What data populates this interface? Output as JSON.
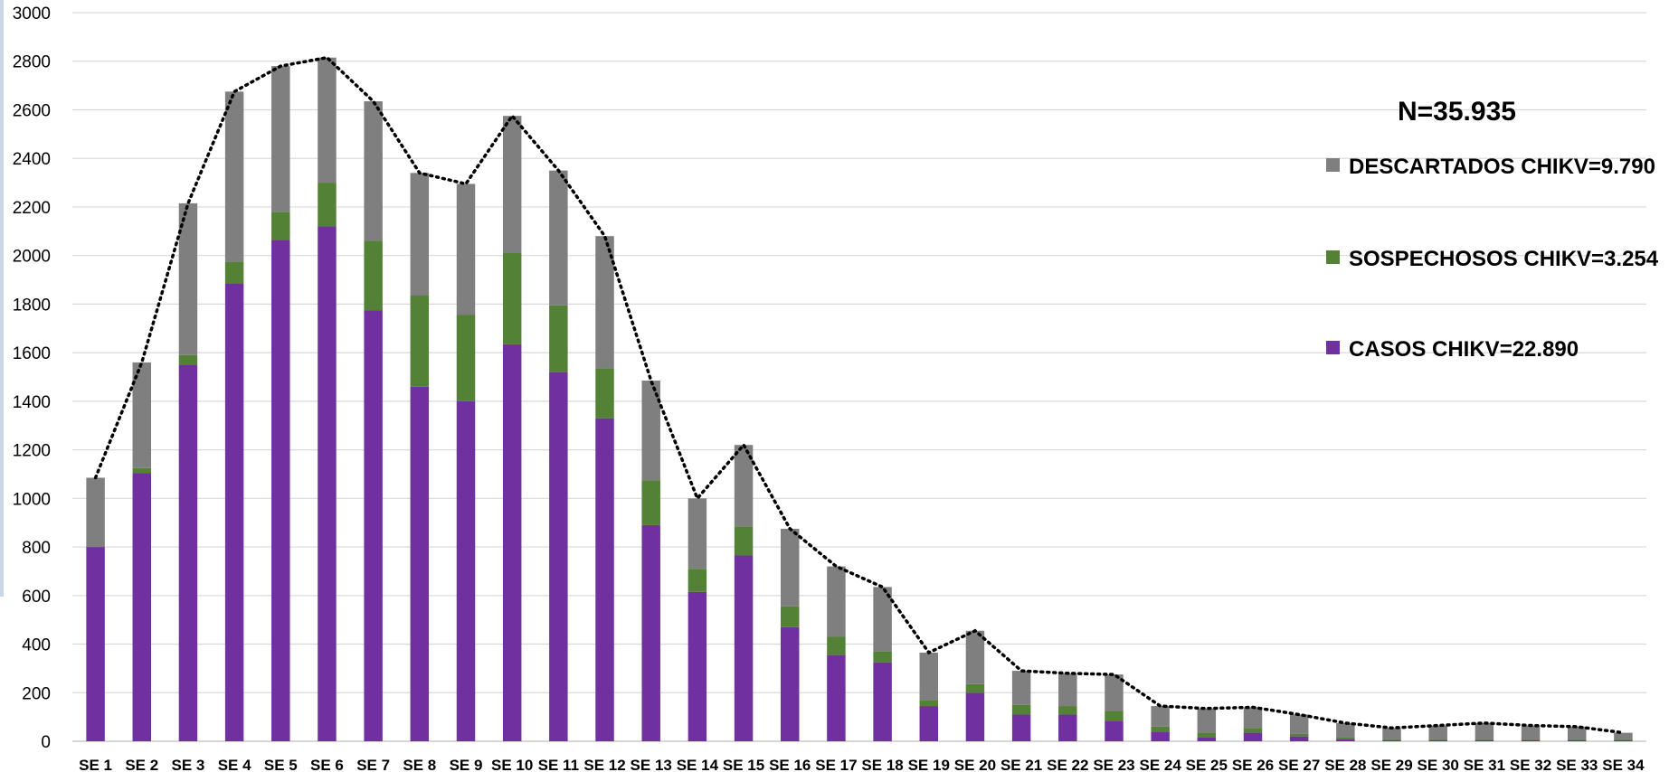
{
  "chart_data": {
    "type": "bar",
    "stacked": true,
    "title": "",
    "xlabel": "",
    "ylabel": "",
    "ylim": [
      0,
      3000
    ],
    "yticks": [
      0,
      200,
      400,
      600,
      800,
      1000,
      1200,
      1400,
      1600,
      1800,
      2000,
      2200,
      2400,
      2600,
      2800,
      3000
    ],
    "grid": true,
    "legend_position": "right",
    "total_label": "N=35.935",
    "categories": [
      "SE 1",
      "SE 2",
      "SE 3",
      "SE 4",
      "SE 5",
      "SE 6",
      "SE 7",
      "SE 8",
      "SE 9",
      "SE 10",
      "SE 11",
      "SE 12",
      "SE 13",
      "SE 14",
      "SE 15",
      "SE 16",
      "SE 17",
      "SE 18",
      "SE 19",
      "SE 20",
      "SE 21",
      "SE 22",
      "SE 23",
      "SE 24",
      "SE 25",
      "SE 26",
      "SE 27",
      "SE 28",
      "SE 29",
      "SE 30",
      "SE 31",
      "SE 32",
      "SE 33",
      "SE 34"
    ],
    "series": [
      {
        "name": "CASOS CHIKV=22.890",
        "color": "#7030a0",
        "values": [
          800,
          1105,
          1550,
          1885,
          2065,
          2120,
          1775,
          1460,
          1400,
          1635,
          1520,
          1330,
          890,
          615,
          765,
          470,
          355,
          325,
          145,
          200,
          110,
          110,
          85,
          40,
          15,
          35,
          20,
          10,
          5,
          5,
          5,
          5,
          5,
          5
        ]
      },
      {
        "name": "SOSPECHOSOS CHIKV=3.254",
        "color": "#538135",
        "values": [
          0,
          20,
          40,
          90,
          115,
          180,
          285,
          375,
          355,
          375,
          275,
          205,
          185,
          95,
          120,
          85,
          75,
          45,
          25,
          35,
          40,
          35,
          40,
          20,
          20,
          20,
          10,
          5,
          5,
          5,
          5,
          5,
          5,
          5
        ]
      },
      {
        "name": "DESCARTADOS CHIKV=9.790",
        "color": "#7f7f7f",
        "values": [
          285,
          435,
          625,
          700,
          600,
          515,
          575,
          505,
          540,
          565,
          555,
          545,
          410,
          290,
          335,
          320,
          290,
          265,
          195,
          220,
          140,
          135,
          150,
          85,
          100,
          85,
          80,
          60,
          45,
          55,
          65,
          55,
          50,
          25
        ]
      }
    ],
    "total_line": {
      "style": "dotted",
      "color": "#000000",
      "values": [
        1085,
        1560,
        2215,
        2675,
        2780,
        2815,
        2635,
        2340,
        2295,
        2575,
        2350,
        2080,
        1485,
        1000,
        1220,
        875,
        720,
        635,
        365,
        455,
        290,
        280,
        275,
        145,
        135,
        140,
        110,
        75,
        55,
        65,
        75,
        65,
        60,
        35
      ]
    },
    "legend_order": [
      "DESCARTADOS CHIKV=9.790",
      "SOSPECHOSOS CHIKV=3.254",
      "CASOS CHIKV=22.890"
    ]
  }
}
